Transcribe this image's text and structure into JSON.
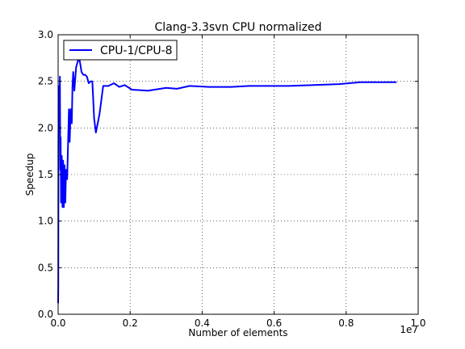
{
  "chart_data": {
    "type": "line",
    "title": "Clang-3.3svn CPU normalized",
    "xlabel": "Number of elements",
    "ylabel": "Speedup",
    "x_offset_label": "1e7",
    "xlim": [
      0,
      10000000
    ],
    "ylim": [
      0.0,
      3.0
    ],
    "x_tick_values": [
      0,
      2000000,
      4000000,
      6000000,
      8000000,
      10000000
    ],
    "x_tick_labels": [
      "0.0",
      "0.2",
      "0.4",
      "0.6",
      "0.8",
      "1.0"
    ],
    "y_tick_values": [
      0.0,
      0.5,
      1.0,
      1.5,
      2.0,
      2.5,
      3.0
    ],
    "y_tick_labels": [
      "0.0",
      "0.5",
      "1.0",
      "1.5",
      "2.0",
      "2.5",
      "3.0"
    ],
    "grid": true,
    "legend_position": "top-left",
    "series": [
      {
        "name": "CPU-1/CPU-8",
        "color": "#0000ff",
        "x": [
          1000,
          5000,
          10000,
          20000,
          30000,
          40000,
          50000,
          60000,
          70000,
          80000,
          100000,
          120000,
          140000,
          160000,
          180000,
          200000,
          220000,
          250000,
          280000,
          300000,
          320000,
          350000,
          380000,
          400000,
          420000,
          450000,
          480000,
          500000,
          550000,
          600000,
          650000,
          700000,
          750000,
          800000,
          850000,
          900000,
          950000,
          1000000,
          1050000,
          1150000,
          1250000,
          1400000,
          1550000,
          1700000,
          1850000,
          2050000,
          2500000,
          3000000,
          3300000,
          3650000,
          4200000,
          4800000,
          5300000,
          5900000,
          6400000,
          7100000,
          7800000,
          8400000,
          9400000
        ],
        "y": [
          0.12,
          0.3,
          1.9,
          2.45,
          2.2,
          2.0,
          2.55,
          1.55,
          1.9,
          1.2,
          1.7,
          1.15,
          1.65,
          1.15,
          1.6,
          1.2,
          1.55,
          1.45,
          1.9,
          2.2,
          1.85,
          2.2,
          2.05,
          2.45,
          2.6,
          2.4,
          2.55,
          2.65,
          2.72,
          2.72,
          2.6,
          2.57,
          2.57,
          2.55,
          2.48,
          2.5,
          2.5,
          2.1,
          1.95,
          2.15,
          2.45,
          2.45,
          2.48,
          2.44,
          2.46,
          2.41,
          2.4,
          2.43,
          2.42,
          2.45,
          2.44,
          2.44,
          2.45,
          2.45,
          2.45,
          2.46,
          2.47,
          2.49,
          2.49
        ]
      }
    ]
  }
}
